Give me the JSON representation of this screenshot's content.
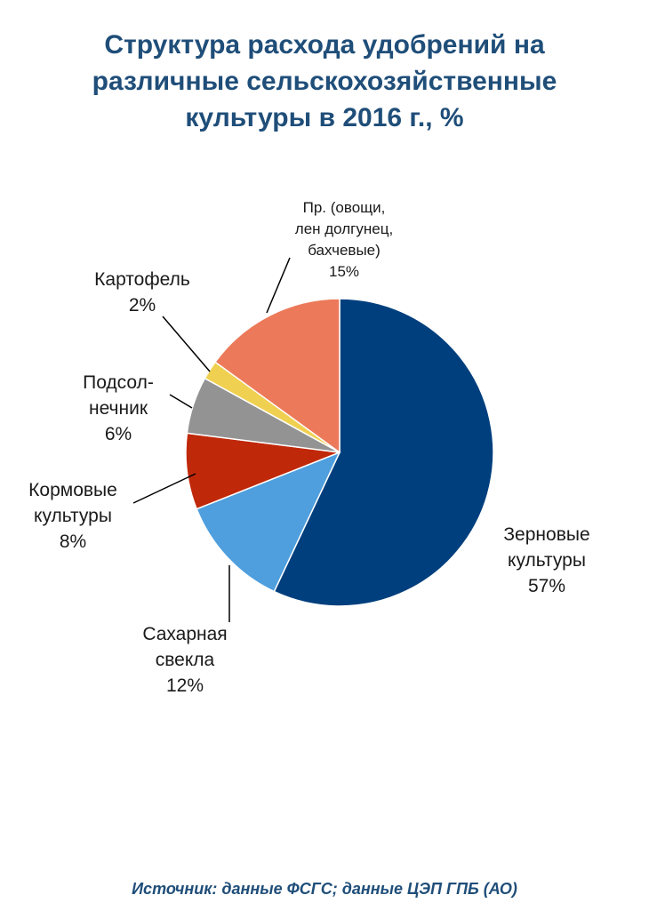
{
  "chart_data": {
    "type": "pie",
    "title_lines": [
      "Структура расхода удобрений на",
      "различные сельскохозяйственные",
      "культуры в 2016 г., %"
    ],
    "slices": [
      {
        "label_lines": [
          "Зерновые",
          "культуры"
        ],
        "pct_label": "57%",
        "value": 57,
        "color": "#003f7d"
      },
      {
        "label_lines": [
          "Сахарная",
          "свекла"
        ],
        "pct_label": "12%",
        "value": 12,
        "color": "#4f9fde"
      },
      {
        "label_lines": [
          "Кормовые",
          "культуры"
        ],
        "pct_label": "8%",
        "value": 8,
        "color": "#c0280a"
      },
      {
        "label_lines": [
          "Подсол-",
          "нечник"
        ],
        "pct_label": "6%",
        "value": 6,
        "color": "#939393"
      },
      {
        "label_lines": [
          "Картофель"
        ],
        "pct_label": "2%",
        "value": 2,
        "color": "#f0d050"
      },
      {
        "label_lines": [
          "Пр. (овощи,",
          "лен долгунец,",
          "бахчевые)"
        ],
        "pct_label": "15%",
        "value": 15,
        "color": "#ec7a5a"
      }
    ]
  },
  "source": "Источник: данные ФСГС; данные ЦЭП ГПБ (АО)"
}
